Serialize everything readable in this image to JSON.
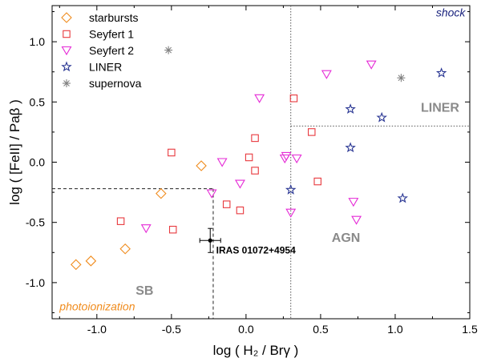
{
  "chart_data": {
    "type": "scatter",
    "xlabel": "log ( H₂ / Brγ )",
    "ylabel": "log ( [FeII] / Paβ )",
    "xlim": [
      -1.3,
      1.5
    ],
    "ylim": [
      -1.3,
      1.3
    ],
    "xticks": [
      {
        "v": -1.0,
        "label": "-1.0"
      },
      {
        "v": -0.5,
        "label": "-0.5"
      },
      {
        "v": 0.0,
        "label": "0.0"
      },
      {
        "v": 0.5,
        "label": "0.5"
      },
      {
        "v": 1.0,
        "label": "1.0"
      },
      {
        "v": 1.5,
        "label": "1.5"
      }
    ],
    "yticks": [
      {
        "v": 1.0,
        "label": "1.0"
      },
      {
        "v": 0.5,
        "label": "0.5"
      },
      {
        "v": 0.0,
        "label": "0.0"
      },
      {
        "v": -0.5,
        "label": "-0.5"
      },
      {
        "v": -1.0,
        "label": "-1.0"
      }
    ],
    "grid": false,
    "legend_position": "top-left",
    "series": [
      {
        "name": "starbursts",
        "marker": "diamond",
        "color": "#f08c1e",
        "points": [
          [
            -1.14,
            -0.85
          ],
          [
            -1.04,
            -0.82
          ],
          [
            -0.81,
            -0.72
          ],
          [
            -0.57,
            -0.26
          ],
          [
            -0.3,
            -0.03
          ]
        ]
      },
      {
        "name": "Seyfert 1",
        "marker": "square",
        "color": "#e8383d",
        "points": [
          [
            -0.84,
            -0.49
          ],
          [
            -0.5,
            0.08
          ],
          [
            -0.49,
            -0.56
          ],
          [
            -0.13,
            -0.35
          ],
          [
            -0.04,
            -0.4
          ],
          [
            0.02,
            0.04
          ],
          [
            0.06,
            -0.07
          ],
          [
            0.06,
            0.2
          ],
          [
            0.32,
            0.53
          ],
          [
            0.44,
            0.25
          ],
          [
            0.48,
            -0.16
          ]
        ]
      },
      {
        "name": "Seyfert 2",
        "marker": "triangle-down",
        "color": "#e52ad6",
        "points": [
          [
            -0.67,
            -0.55
          ],
          [
            -0.23,
            -0.26
          ],
          [
            -0.16,
            0.0
          ],
          [
            -0.04,
            -0.18
          ],
          [
            0.09,
            0.53
          ],
          [
            0.26,
            0.03
          ],
          [
            0.27,
            0.05
          ],
          [
            0.3,
            -0.42
          ],
          [
            0.34,
            0.03
          ],
          [
            0.54,
            0.73
          ],
          [
            0.72,
            -0.33
          ],
          [
            0.74,
            -0.48
          ],
          [
            0.84,
            0.81
          ]
        ]
      },
      {
        "name": "LINER",
        "marker": "star",
        "color": "#283593",
        "points": [
          [
            0.3,
            -0.23
          ],
          [
            0.7,
            0.12
          ],
          [
            0.7,
            0.44
          ],
          [
            0.91,
            0.37
          ],
          [
            1.05,
            -0.3
          ],
          [
            1.31,
            0.74
          ]
        ]
      },
      {
        "name": "supernova",
        "marker": "asterisk",
        "color": "#808080",
        "points": [
          [
            -0.52,
            0.93
          ],
          [
            1.04,
            0.7
          ]
        ]
      }
    ],
    "dividers": {
      "dotted_vertical_x": 0.3,
      "dotted_horizontal_y": 0.3,
      "dashed_vertical_x": -0.22,
      "dashed_horizontal_y": -0.22
    },
    "highlight": {
      "x": -0.24,
      "y": -0.65,
      "xerr": 0.07,
      "yerr": 0.1,
      "color": "#000000",
      "label": "IRAS 01072+4954",
      "label_at": [
        -0.2,
        -0.73
      ]
    },
    "annotations": [
      {
        "key": "shock",
        "text": "shock",
        "x": 1.47,
        "y": 1.21,
        "anchor": "end",
        "style": "corner",
        "color": "#1a237e"
      },
      {
        "key": "liner",
        "text": "LINER",
        "x": 1.43,
        "y": 0.42,
        "anchor": "end",
        "style": "region",
        "color": "#8a8a8a"
      },
      {
        "key": "agn",
        "text": "AGN",
        "x": 0.67,
        "y": -0.66,
        "anchor": "middle",
        "style": "region",
        "color": "#8a8a8a"
      },
      {
        "key": "sb",
        "text": "SB",
        "x": -0.68,
        "y": -1.1,
        "anchor": "middle",
        "style": "region",
        "color": "#8a8a8a"
      },
      {
        "key": "photoionization",
        "text": "photoionization",
        "x": -1.25,
        "y": -1.23,
        "anchor": "start",
        "style": "corner",
        "color": "#f08c1e"
      }
    ]
  }
}
